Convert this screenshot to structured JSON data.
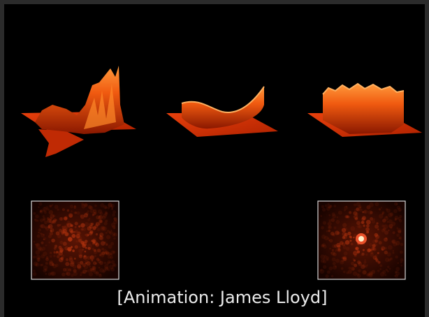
{
  "caption": "[Animation: James Lloyd]"
}
